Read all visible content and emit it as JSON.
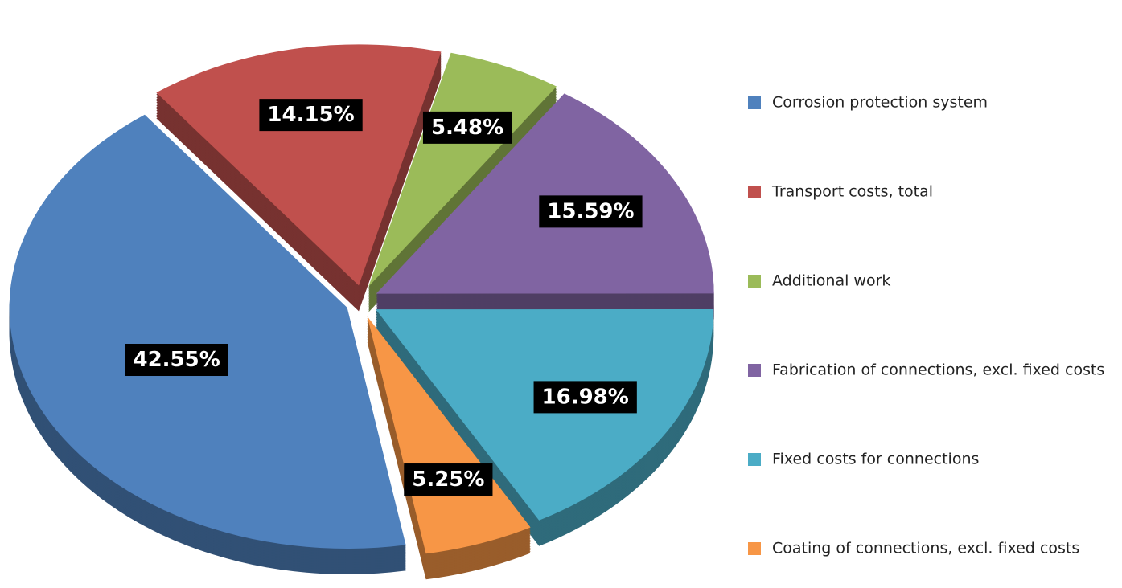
{
  "chart_data": {
    "type": "pie",
    "categories": [
      "Corrosion protection system",
      "Transport costs, total",
      "Additional work",
      "Fabrication of connections, excl. fixed costs",
      "Fixed costs for connections",
      "Coating of connections, excl. fixed costs"
    ],
    "values": [
      42.55,
      14.15,
      5.48,
      15.59,
      16.98,
      5.25
    ],
    "value_labels": [
      "42.55%",
      "14.15%",
      "5.48%",
      "15.59%",
      "16.98%",
      "5.25%"
    ],
    "colors": [
      "#4f81bd",
      "#c0504d",
      "#9bbb59",
      "#8064a2",
      "#4bacc6",
      "#f79646"
    ],
    "legend": "right"
  }
}
